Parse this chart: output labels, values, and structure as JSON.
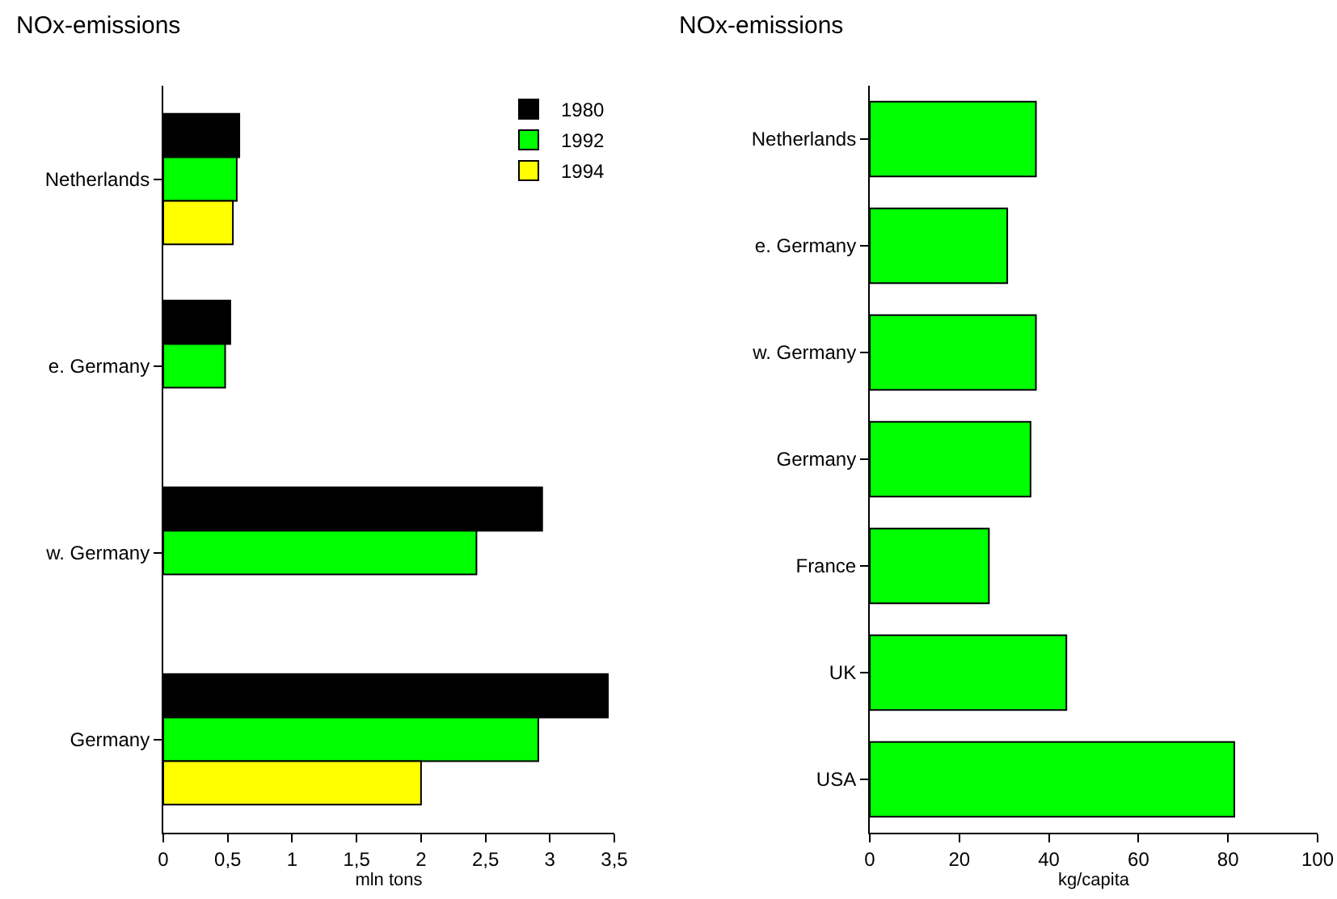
{
  "chart_data": [
    {
      "type": "bar",
      "title": "NOx-emissions",
      "xlabel": "mln tons",
      "orientation": "horizontal",
      "categories": [
        "Netherlands",
        "e. Germany",
        "w. Germany",
        "Germany"
      ],
      "series": [
        {
          "name": "1980",
          "color": "#000000",
          "values": [
            0.59,
            0.52,
            2.94,
            3.45
          ]
        },
        {
          "name": "1992",
          "color": "#00ff00",
          "values": [
            0.57,
            0.48,
            2.43,
            2.91
          ]
        },
        {
          "name": "1994",
          "color": "#ffff00",
          "values": [
            0.54,
            null,
            null,
            2.0
          ]
        }
      ],
      "xlim": [
        0,
        3.5
      ],
      "xticks": [
        0,
        {
          "value": 0.5,
          "label": "0,5"
        },
        1,
        {
          "value": 1.5,
          "label": "1,5"
        },
        2,
        {
          "value": 2.5,
          "label": "2,5"
        },
        3,
        {
          "value": 3.5,
          "label": "3,5"
        }
      ],
      "legend": "top right"
    },
    {
      "type": "bar",
      "title": "NOx-emissions",
      "xlabel": "kg/capita",
      "orientation": "horizontal",
      "categories": [
        "Netherlands",
        "e. Germany",
        "w. Germany",
        "Germany",
        "France",
        "UK",
        "USA"
      ],
      "values": [
        37.1,
        30.7,
        37.1,
        35.9,
        26.6,
        43.9,
        81.4
      ],
      "color": "#00ff00",
      "xlim": [
        0,
        100
      ],
      "xticks": [
        0,
        20,
        40,
        60,
        80,
        100
      ]
    }
  ]
}
